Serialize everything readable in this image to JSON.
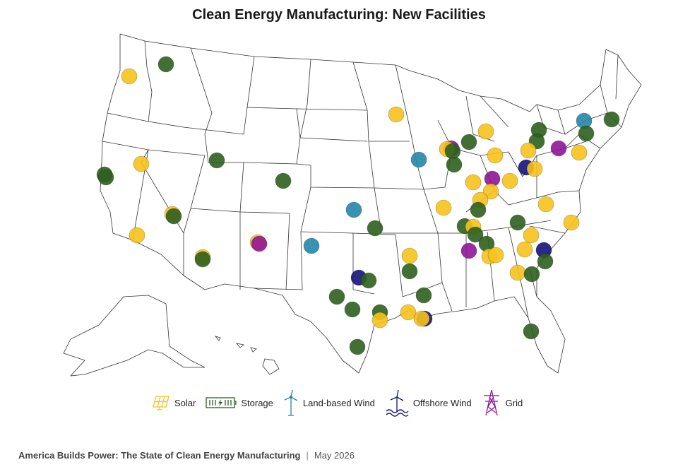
{
  "title": "Clean Energy Manufacturing: New Facilities",
  "legend": [
    {
      "label": "Solar",
      "icon": "solar-panel-icon",
      "color": "#F6C21B"
    },
    {
      "label": "Storage",
      "icon": "battery-icon",
      "color": "#2D5F1E"
    },
    {
      "label": "Land-based Wind",
      "icon": "wind-turbine-icon",
      "color": "#2486A8"
    },
    {
      "label": "Offshore Wind",
      "icon": "offshore-wind-icon",
      "color": "#15137A"
    },
    {
      "label": "Grid",
      "icon": "transmission-tower-icon",
      "color": "#8E1597"
    }
  ],
  "footer": {
    "source": "America Builds Power: The State of Clean Energy Manufacturing",
    "date": "May 2026"
  },
  "facilities": [
    {
      "type": "Storage",
      "state": "WA"
    },
    {
      "type": "Solar",
      "state": "WA"
    },
    {
      "type": "Solar",
      "state": "MN"
    },
    {
      "type": "Land-based Wind",
      "state": "NY"
    },
    {
      "type": "Storage",
      "state": "NH"
    },
    {
      "type": "Storage",
      "state": "NY"
    },
    {
      "type": "Storage",
      "state": "NY"
    },
    {
      "type": "Storage",
      "state": "PA"
    },
    {
      "type": "Solar",
      "state": "MI"
    },
    {
      "type": "Storage",
      "state": "IN"
    },
    {
      "type": "Grid",
      "state": "IL"
    },
    {
      "type": "Solar",
      "state": "IL"
    },
    {
      "type": "Storage",
      "state": "IL"
    },
    {
      "type": "Storage",
      "state": "IL"
    },
    {
      "type": "Solar",
      "state": "OH"
    },
    {
      "type": "Solar",
      "state": "PA"
    },
    {
      "type": "Grid",
      "state": "PA"
    },
    {
      "type": "Solar",
      "state": "NJ"
    },
    {
      "type": "Land-based Wind",
      "state": "IA"
    },
    {
      "type": "Solar",
      "state": "NV"
    },
    {
      "type": "Storage",
      "state": "UT"
    },
    {
      "type": "Storage",
      "state": "CA"
    },
    {
      "type": "Storage",
      "state": "CA"
    },
    {
      "type": "Storage",
      "state": "CO"
    },
    {
      "type": "Offshore Wind",
      "state": "OH"
    },
    {
      "type": "Solar",
      "state": "OH"
    },
    {
      "type": "Grid",
      "state": "IN"
    },
    {
      "type": "Solar",
      "state": "IN"
    },
    {
      "type": "Solar",
      "state": "OH"
    },
    {
      "type": "Solar",
      "state": "KY"
    },
    {
      "type": "Solar",
      "state": "KY"
    },
    {
      "type": "Storage",
      "state": "KY"
    },
    {
      "type": "Solar",
      "state": "MO"
    },
    {
      "type": "Land-based Wind",
      "state": "KS"
    },
    {
      "type": "Storage",
      "state": "OK"
    },
    {
      "type": "Solar",
      "state": "VA"
    },
    {
      "type": "Solar",
      "state": "NC"
    },
    {
      "type": "Storage",
      "state": "TN"
    },
    {
      "type": "Storage",
      "state": "TN"
    },
    {
      "type": "Solar",
      "state": "TN"
    },
    {
      "type": "Storage",
      "state": "TN"
    },
    {
      "type": "Storage",
      "state": "TN"
    },
    {
      "type": "Solar",
      "state": "NC"
    },
    {
      "type": "Solar",
      "state": "SC"
    },
    {
      "type": "Offshore Wind",
      "state": "SC"
    },
    {
      "type": "Storage",
      "state": "SC"
    },
    {
      "type": "Solar",
      "state": "GA"
    },
    {
      "type": "Solar",
      "state": "GA"
    },
    {
      "type": "Solar",
      "state": "GA"
    },
    {
      "type": "Storage",
      "state": "GA"
    },
    {
      "type": "Grid",
      "state": "AL"
    },
    {
      "type": "Solar",
      "state": "CA"
    },
    {
      "type": "Solar",
      "state": "CA"
    },
    {
      "type": "Storage",
      "state": "CA"
    },
    {
      "type": "Solar",
      "state": "AZ"
    },
    {
      "type": "Storage",
      "state": "AZ"
    },
    {
      "type": "Solar",
      "state": "NM"
    },
    {
      "type": "Grid",
      "state": "NM"
    },
    {
      "type": "Land-based Wind",
      "state": "TX"
    },
    {
      "type": "Offshore Wind",
      "state": "TX"
    },
    {
      "type": "Storage",
      "state": "TX"
    },
    {
      "type": "Storage",
      "state": "TX"
    },
    {
      "type": "Storage",
      "state": "TX"
    },
    {
      "type": "Storage",
      "state": "TX"
    },
    {
      "type": "Solar",
      "state": "TX"
    },
    {
      "type": "Storage",
      "state": "TX"
    },
    {
      "type": "Solar",
      "state": "AR"
    },
    {
      "type": "Storage",
      "state": "AR"
    },
    {
      "type": "Storage",
      "state": "MS"
    },
    {
      "type": "Solar",
      "state": "LA"
    },
    {
      "type": "Offshore Wind",
      "state": "LA"
    },
    {
      "type": "Solar",
      "state": "LA"
    },
    {
      "type": "Storage",
      "state": "FL"
    }
  ]
}
